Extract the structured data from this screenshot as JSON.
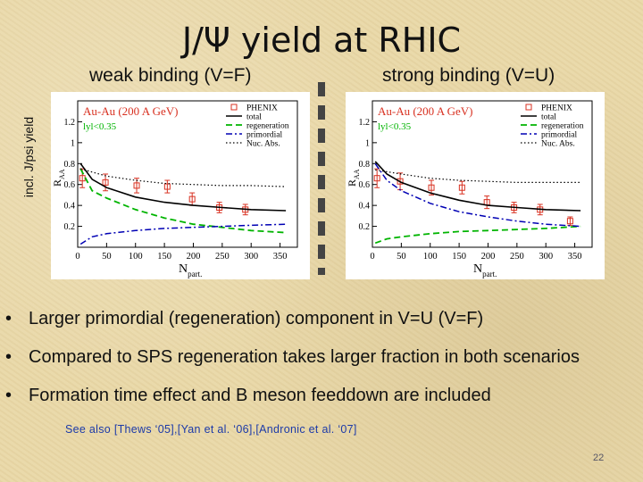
{
  "slide": {
    "title": "J/Ψ yield at RHIC",
    "left_title": "weak binding (V=F)",
    "right_title": "strong binding (V=U)",
    "side_label": "incl. J/psi yield",
    "bullets": [
      "Larger primordial (regeneration) component in V=U (V=F)",
      "Compared to SPS regeneration takes larger fraction in both scenarios",
      "Formation time effect and B meson feeddown are included"
    ],
    "bullet_glyph": "•",
    "references": "See also [Thews ‘05],[Yan et al. ‘06],[Andronic et al. ‘07]",
    "page_number": "22"
  },
  "colors": {
    "background": "#e9d8a8",
    "total": "#000000",
    "regeneration": "#00b400",
    "primordial": "#0000b4",
    "nuc_abs": "#000000",
    "phenix": "#d83020",
    "system_label": "#d83020",
    "rapidity_label": "#00b400"
  },
  "chart_data": [
    {
      "type": "line",
      "system": "Au-Au (200 A GeV)",
      "rapidity": "lyl<0.35",
      "xlabel": "N",
      "xlabel_sub": "part.",
      "ylabel": "R",
      "ylabel_sub": "AA",
      "xlim": [
        0,
        380
      ],
      "ylim": [
        0,
        1.4
      ],
      "xticks": [
        0,
        50,
        100,
        150,
        200,
        250,
        300,
        350
      ],
      "yticks": [
        0.2,
        0.4,
        0.6,
        0.8,
        1,
        1.2
      ],
      "legend_position": "top-right",
      "series": [
        {
          "name": "PHENIX",
          "style": "points",
          "x": [
            8,
            48,
            102,
            155,
            198,
            245,
            290
          ],
          "y": [
            0.66,
            0.62,
            0.59,
            0.58,
            0.46,
            0.38,
            0.36
          ],
          "yerr": [
            0.09,
            0.08,
            0.07,
            0.06,
            0.06,
            0.05,
            0.05
          ]
        },
        {
          "name": "total",
          "style": "solid",
          "x": [
            5,
            25,
            50,
            100,
            150,
            200,
            250,
            300,
            360
          ],
          "y": [
            0.8,
            0.65,
            0.57,
            0.48,
            0.43,
            0.4,
            0.38,
            0.36,
            0.35
          ]
        },
        {
          "name": "regeneration",
          "style": "dashed",
          "x": [
            5,
            25,
            50,
            100,
            150,
            200,
            250,
            300,
            360
          ],
          "y": [
            0.75,
            0.54,
            0.47,
            0.36,
            0.28,
            0.22,
            0.19,
            0.16,
            0.14
          ]
        },
        {
          "name": "primordial",
          "style": "dashdot",
          "x": [
            5,
            25,
            50,
            100,
            150,
            200,
            250,
            300,
            360
          ],
          "y": [
            0.03,
            0.1,
            0.13,
            0.16,
            0.18,
            0.19,
            0.2,
            0.21,
            0.22
          ]
        },
        {
          "name": "Nuc. Abs.",
          "style": "dotted",
          "x": [
            5,
            50,
            100,
            150,
            200,
            250,
            300,
            360
          ],
          "y": [
            0.75,
            0.68,
            0.64,
            0.61,
            0.6,
            0.59,
            0.59,
            0.58
          ]
        }
      ]
    },
    {
      "type": "line",
      "system": "Au-Au (200 A GeV)",
      "rapidity": "lyl<0.35",
      "xlabel": "N",
      "xlabel_sub": "part.",
      "ylabel": "R",
      "ylabel_sub": "AA",
      "xlim": [
        0,
        380
      ],
      "ylim": [
        0,
        1.4
      ],
      "xticks": [
        0,
        50,
        100,
        150,
        200,
        250,
        300,
        350
      ],
      "yticks": [
        0.2,
        0.4,
        0.6,
        0.8,
        1,
        1.2
      ],
      "legend_position": "top-right",
      "series": [
        {
          "name": "PHENIX",
          "style": "points",
          "x": [
            8,
            48,
            102,
            155,
            198,
            245,
            290,
            342
          ],
          "y": [
            0.66,
            0.63,
            0.57,
            0.57,
            0.43,
            0.38,
            0.36,
            0.25
          ],
          "yerr": [
            0.09,
            0.08,
            0.07,
            0.06,
            0.06,
            0.05,
            0.05,
            0.04
          ]
        },
        {
          "name": "total",
          "style": "solid",
          "x": [
            5,
            25,
            50,
            100,
            150,
            200,
            250,
            300,
            360
          ],
          "y": [
            0.82,
            0.7,
            0.62,
            0.52,
            0.45,
            0.4,
            0.38,
            0.36,
            0.35
          ]
        },
        {
          "name": "regeneration",
          "style": "dashed",
          "x": [
            5,
            25,
            50,
            100,
            150,
            200,
            250,
            300,
            360
          ],
          "y": [
            0.04,
            0.08,
            0.1,
            0.13,
            0.15,
            0.16,
            0.17,
            0.18,
            0.2
          ]
        },
        {
          "name": "primordial",
          "style": "dashdot",
          "x": [
            5,
            25,
            50,
            100,
            150,
            200,
            250,
            300,
            360
          ],
          "y": [
            0.8,
            0.64,
            0.54,
            0.42,
            0.34,
            0.29,
            0.25,
            0.22,
            0.2
          ]
        },
        {
          "name": "Nuc. Abs.",
          "style": "dotted",
          "x": [
            5,
            50,
            100,
            150,
            200,
            250,
            300,
            360
          ],
          "y": [
            0.74,
            0.7,
            0.66,
            0.64,
            0.63,
            0.62,
            0.62,
            0.62
          ]
        }
      ]
    }
  ]
}
